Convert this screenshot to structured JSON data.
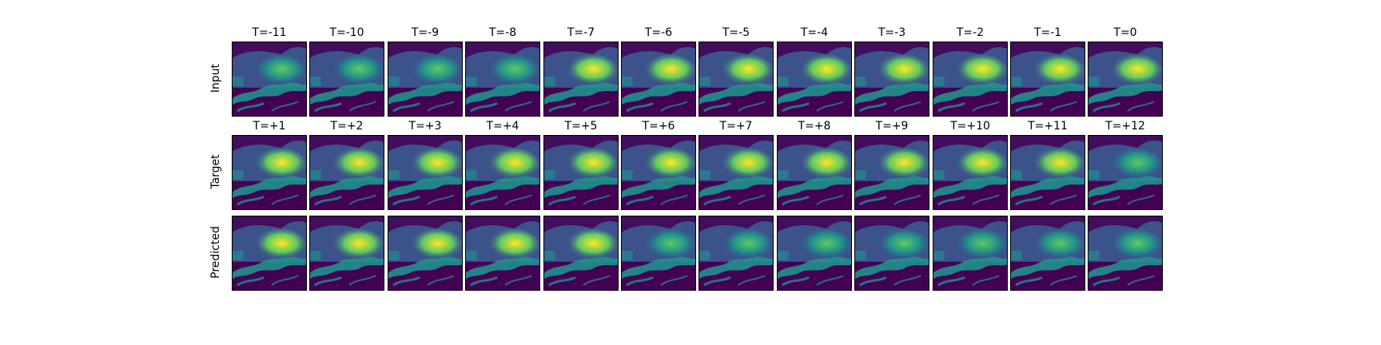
{
  "rows": [
    {
      "label": "Input",
      "titles": [
        "T=-11",
        "T=-10",
        "T=-9",
        "T=-8",
        "T=-7",
        "T=-6",
        "T=-5",
        "T=-4",
        "T=-3",
        "T=-2",
        "T=-1",
        "T=0"
      ],
      "intensity": [
        0.55,
        0.58,
        0.62,
        0.66,
        0.74,
        0.76,
        0.78,
        0.8,
        0.82,
        0.86,
        0.92,
        0.84
      ]
    },
    {
      "label": "Target",
      "titles": [
        "T=+1",
        "T=+2",
        "T=+3",
        "T=+4",
        "T=+5",
        "T=+6",
        "T=+7",
        "T=+8",
        "T=+9",
        "T=+10",
        "T=+11",
        "T=+12"
      ],
      "intensity": [
        0.86,
        0.88,
        0.9,
        0.9,
        0.88,
        0.86,
        0.84,
        0.82,
        0.8,
        0.76,
        0.72,
        0.68
      ]
    },
    {
      "label": "Predicted",
      "titles": [
        "",
        "",
        "",
        "",
        "",
        "",
        "",
        "",
        "",
        "",
        "",
        ""
      ],
      "intensity": [
        0.88,
        0.84,
        0.8,
        0.76,
        0.72,
        0.68,
        0.64,
        0.6,
        0.56,
        0.52,
        0.48,
        0.44
      ]
    }
  ],
  "colormap": [
    "#440154",
    "#3b528b",
    "#21918c",
    "#5ec962",
    "#fde725"
  ]
}
